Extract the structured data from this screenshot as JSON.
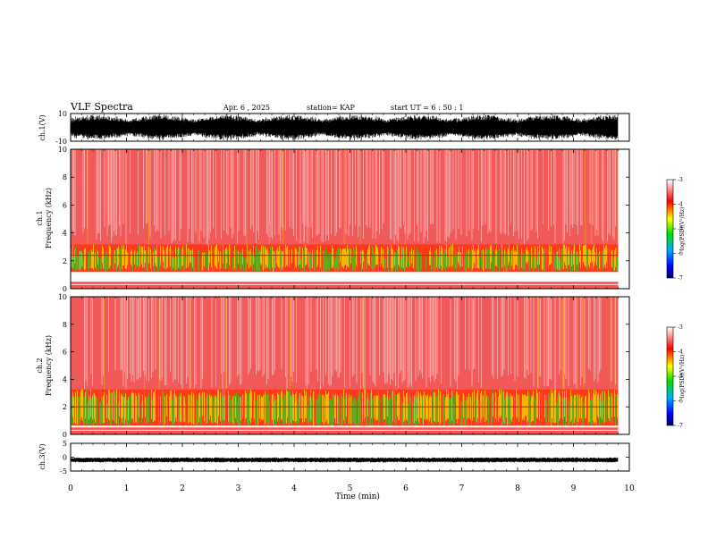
{
  "header": {
    "title": "VLF Spectra",
    "date": "Apr. 6 , 2025",
    "station": "station= KAP",
    "start": "start UT =  6 : 50 : 1"
  },
  "chart_data": [
    {
      "type": "line",
      "panel": "ch1-waveform",
      "ylabel": "ch.1(V)",
      "ylim": [
        -10,
        10
      ],
      "yticks": [
        "10",
        "-10"
      ],
      "note": "dense black waveform spanning roughly -8 to 8 V over 0 to 9.8 min"
    },
    {
      "type": "heatmap",
      "panel": "ch1-spectrogram",
      "ylabel": [
        "ch.1",
        "Frequency (kHz)"
      ],
      "ylim": [
        0,
        10
      ],
      "yticks": [
        "0",
        "2",
        "4",
        "6",
        "8",
        "10"
      ],
      "x_range_min": [
        0,
        9.8
      ],
      "bands_khz": {
        "strong_green_yellow": [
          1.2,
          3.2
        ],
        "red_background": [
          3.2,
          10
        ],
        "lines": [
          0.3,
          0.6,
          0.9,
          2.4
        ]
      },
      "colorbar": {
        "label": "log(PSD)(V²/Hz)",
        "min": -7,
        "max": -3,
        "ticks": [
          "-3",
          "-4",
          "-5",
          "-6",
          "-7"
        ],
        "colors": [
          "#ffffff",
          "#ff0000",
          "#ffff00",
          "#00dd00",
          "#00aaff",
          "#0000ff",
          "#000066"
        ]
      }
    },
    {
      "type": "heatmap",
      "panel": "ch2-spectrogram",
      "ylabel": [
        "ch.2",
        "Frequency (kHz)"
      ],
      "ylim": [
        0,
        10
      ],
      "yticks": [
        "0",
        "2",
        "4",
        "6",
        "8",
        "10"
      ],
      "x_range_min": [
        0,
        9.8
      ],
      "bands_khz": {
        "strong_green_yellow": [
          0.6,
          3.3
        ],
        "red_background": [
          3.3,
          10
        ],
        "lines": [
          0.3,
          0.6,
          2.0
        ]
      },
      "colorbar": {
        "label": "log(PSD)(V²/Hz)",
        "min": -7,
        "max": -3,
        "ticks": [
          "-3",
          "-4",
          "-5",
          "-6",
          "-7"
        ],
        "colors": [
          "#ffffff",
          "#ff0000",
          "#ffff00",
          "#00dd00",
          "#00aaff",
          "#0000ff",
          "#000066"
        ]
      }
    },
    {
      "type": "line",
      "panel": "ch3-waveform",
      "ylabel": "ch.3(V)",
      "ylim": [
        -5,
        5
      ],
      "yticks": [
        "5",
        "0",
        "-5"
      ],
      "note": "narrow black trace near -1 V over 0 to 9.8 min"
    }
  ],
  "xaxis": {
    "label": "Time (min)",
    "range": [
      0,
      10
    ],
    "ticks": [
      "0",
      "1",
      "2",
      "3",
      "4",
      "5",
      "6",
      "7",
      "8",
      "9",
      "10"
    ]
  }
}
